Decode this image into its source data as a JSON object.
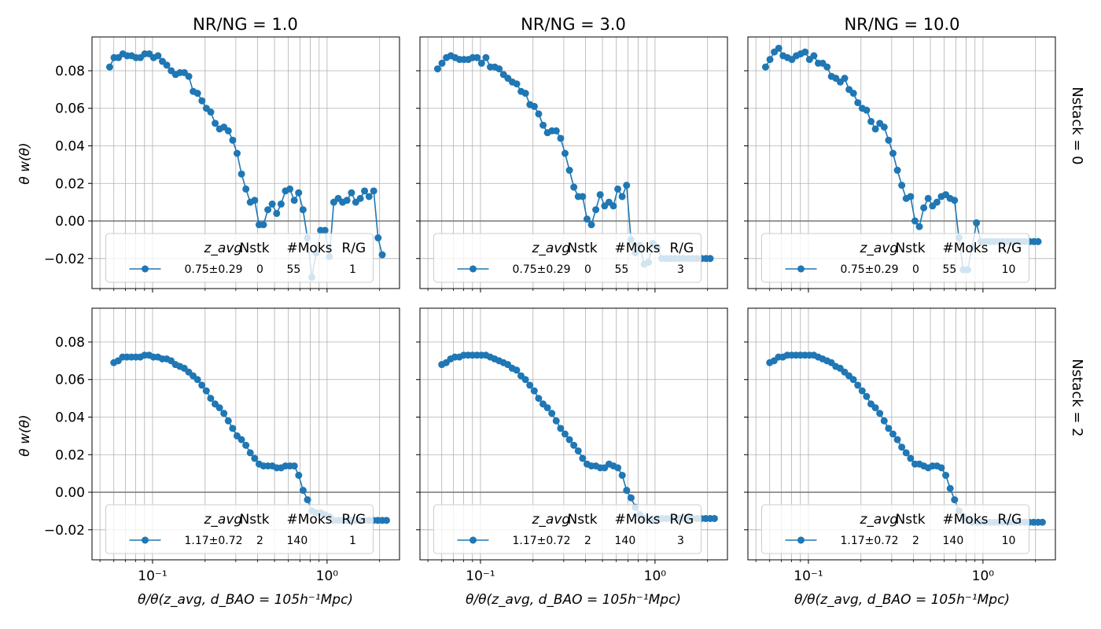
{
  "col_titles": [
    "NR/NG = 1.0",
    "NR/NG = 3.0",
    "NR/NG = 10.0"
  ],
  "row_labels": [
    "Nstack = 0",
    "Nstack = 2"
  ],
  "ylabel": "θ w(θ)",
  "xlabel": "θ/θ(z_avg, d_BAO = 105h⁻¹Mpc)",
  "legend": {
    "header": {
      "zavg": "z_avg",
      "nstk": "Nstk",
      "moks": "#Moks",
      "rg": "R/G"
    },
    "rows": [
      [
        "0.75±0.29",
        "0",
        "55",
        "1"
      ],
      [
        "0.75±0.29",
        "0",
        "55",
        "3"
      ],
      [
        "0.75±0.29",
        "0",
        "55",
        "10"
      ],
      [
        "1.17±0.72",
        "2",
        "140",
        "1"
      ],
      [
        "1.17±0.72",
        "2",
        "140",
        "3"
      ],
      [
        "1.17±0.72",
        "2",
        "140",
        "10"
      ]
    ]
  },
  "chart_data": {
    "type": "line",
    "layout": "2x3 grid",
    "xscale": "log",
    "xlim": [
      0.045,
      2.6
    ],
    "ylim": [
      -0.036,
      0.098
    ],
    "yticks": [
      -0.02,
      0.0,
      0.02,
      0.04,
      0.06,
      0.08
    ],
    "ytick_labels": [
      "−0.02",
      "0.00",
      "0.02",
      "0.04",
      "0.06",
      "0.08"
    ],
    "xticks": [
      0.1,
      1
    ],
    "xtick_labels": [
      "10⁻¹",
      "10⁰"
    ],
    "grid": true,
    "reference_line_y": 0,
    "legend_placement": "lower center",
    "series_color": "#1f77b4",
    "x_top": [
      0.0568,
      0.0602,
      0.0638,
      0.0676,
      0.0716,
      0.0759,
      0.0804,
      0.0852,
      0.0903,
      0.0957,
      0.1014,
      0.1075,
      0.1139,
      0.1207,
      0.1279,
      0.1355,
      0.1436,
      0.1522,
      0.1613,
      0.1709,
      0.1811,
      0.1919,
      0.2034,
      0.2155,
      0.2284,
      0.242,
      0.2564,
      0.2717,
      0.288,
      0.3051,
      0.3234,
      0.3427,
      0.3631,
      0.3848,
      0.4078,
      0.4321,
      0.4579,
      0.4852,
      0.5142,
      0.5449,
      0.5774,
      0.6119,
      0.6484,
      0.6871,
      0.7281,
      0.7715,
      0.8176,
      0.8664,
      0.9181,
      0.9729,
      1.031,
      1.0925,
      1.1577,
      1.2268,
      1.3,
      1.38,
      1.46,
      1.55,
      1.64,
      1.74,
      1.85,
      1.96,
      2.07
    ],
    "x_bottom": [
      0.06,
      0.0636,
      0.0674,
      0.0714,
      0.0757,
      0.0802,
      0.085,
      0.0901,
      0.0955,
      0.1012,
      0.1073,
      0.1137,
      0.1205,
      0.1277,
      0.1353,
      0.1434,
      0.152,
      0.1611,
      0.1707,
      0.1809,
      0.1917,
      0.2032,
      0.2153,
      0.2282,
      0.2418,
      0.2563,
      0.2716,
      0.2878,
      0.305,
      0.3233,
      0.3426,
      0.3631,
      0.3848,
      0.4078,
      0.4322,
      0.458,
      0.4854,
      0.5144,
      0.5452,
      0.5778,
      0.6123,
      0.6489,
      0.6877,
      0.7288,
      0.7724,
      0.8186,
      0.8675,
      0.9194,
      0.9744,
      1.0326,
      1.0943,
      1.1597,
      1.229,
      1.3025,
      1.38,
      1.46,
      1.55,
      1.64,
      1.74,
      1.84,
      1.95,
      2.07,
      2.19
    ],
    "panels": [
      {
        "row": 0,
        "col": 0,
        "name": "0.75±0.29 0 55 1",
        "y": [
          0.082,
          0.087,
          0.087,
          0.089,
          0.088,
          0.088,
          0.087,
          0.087,
          0.089,
          0.089,
          0.087,
          0.088,
          0.085,
          0.083,
          0.08,
          0.078,
          0.079,
          0.079,
          0.077,
          0.069,
          0.068,
          0.064,
          0.06,
          0.058,
          0.052,
          0.049,
          0.05,
          0.048,
          0.043,
          0.036,
          0.025,
          0.017,
          0.01,
          0.011,
          -0.002,
          -0.002,
          0.006,
          0.009,
          0.004,
          0.009,
          0.016,
          0.017,
          0.011,
          0.015,
          0.006,
          -0.009,
          -0.03,
          -0.017,
          -0.005,
          -0.005,
          -0.019,
          0.01,
          0.012,
          0.01,
          0.011,
          0.015,
          0.01,
          0.012,
          0.016,
          0.013,
          0.016,
          -0.009,
          -0.018
        ]
      },
      {
        "row": 0,
        "col": 1,
        "name": "0.75±0.29 0 55 3",
        "y": [
          0.081,
          0.084,
          0.087,
          0.088,
          0.087,
          0.086,
          0.086,
          0.086,
          0.087,
          0.087,
          0.084,
          0.087,
          0.082,
          0.082,
          0.081,
          0.078,
          0.076,
          0.074,
          0.073,
          0.069,
          0.068,
          0.062,
          0.061,
          0.057,
          0.051,
          0.047,
          0.048,
          0.048,
          0.044,
          0.036,
          0.027,
          0.018,
          0.013,
          0.013,
          0.001,
          -0.002,
          0.006,
          0.014,
          0.008,
          0.01,
          0.008,
          0.017,
          0.013,
          0.019,
          -0.01,
          -0.017,
          -0.013,
          -0.023,
          -0.022,
          -0.012,
          -0.014,
          -0.02,
          -0.02,
          -0.02,
          -0.02,
          -0.02,
          -0.02,
          -0.02,
          -0.02,
          -0.02,
          -0.02,
          -0.02,
          -0.02
        ]
      },
      {
        "row": 0,
        "col": 2,
        "name": "0.75±0.29 0 55 10",
        "y": [
          0.082,
          0.086,
          0.09,
          0.092,
          0.088,
          0.087,
          0.086,
          0.088,
          0.089,
          0.09,
          0.086,
          0.088,
          0.084,
          0.084,
          0.082,
          0.077,
          0.076,
          0.074,
          0.076,
          0.07,
          0.068,
          0.063,
          0.06,
          0.059,
          0.053,
          0.049,
          0.052,
          0.05,
          0.043,
          0.036,
          0.027,
          0.019,
          0.012,
          0.013,
          0.0,
          -0.003,
          0.007,
          0.012,
          0.008,
          0.01,
          0.013,
          0.014,
          0.012,
          0.011,
          -0.009,
          -0.026,
          -0.026,
          -0.014,
          -0.001,
          -0.011,
          -0.011,
          -0.011,
          -0.011,
          -0.011,
          -0.011,
          -0.011,
          -0.011,
          -0.011,
          -0.011,
          -0.011,
          -0.011,
          -0.011,
          -0.011
        ]
      },
      {
        "row": 1,
        "col": 0,
        "name": "1.17±0.72 2 140 1",
        "y": [
          0.069,
          0.07,
          0.072,
          0.072,
          0.072,
          0.072,
          0.072,
          0.073,
          0.073,
          0.072,
          0.072,
          0.071,
          0.071,
          0.07,
          0.068,
          0.067,
          0.066,
          0.064,
          0.062,
          0.06,
          0.057,
          0.054,
          0.05,
          0.047,
          0.045,
          0.042,
          0.038,
          0.034,
          0.03,
          0.028,
          0.025,
          0.021,
          0.018,
          0.015,
          0.014,
          0.014,
          0.014,
          0.013,
          0.013,
          0.014,
          0.014,
          0.014,
          0.009,
          0.001,
          -0.004,
          -0.01,
          -0.011,
          -0.011,
          -0.012,
          -0.013,
          -0.015,
          -0.015,
          -0.015,
          -0.015,
          -0.015,
          -0.015,
          -0.015,
          -0.015,
          -0.015,
          -0.015,
          -0.015,
          -0.015,
          -0.015
        ]
      },
      {
        "row": 1,
        "col": 1,
        "name": "1.17±0.72 2 140 3",
        "y": [
          0.068,
          0.069,
          0.071,
          0.072,
          0.072,
          0.073,
          0.073,
          0.073,
          0.073,
          0.073,
          0.073,
          0.072,
          0.071,
          0.07,
          0.069,
          0.068,
          0.066,
          0.065,
          0.062,
          0.06,
          0.057,
          0.054,
          0.05,
          0.047,
          0.045,
          0.042,
          0.038,
          0.034,
          0.031,
          0.028,
          0.025,
          0.022,
          0.018,
          0.015,
          0.014,
          0.014,
          0.013,
          0.013,
          0.015,
          0.014,
          0.013,
          0.009,
          0.001,
          -0.003,
          -0.008,
          -0.012,
          -0.014,
          -0.015,
          -0.015,
          -0.014,
          -0.014,
          -0.014,
          -0.014,
          -0.014,
          -0.014,
          -0.014,
          -0.014,
          -0.014,
          -0.014,
          -0.014,
          -0.014,
          -0.014,
          -0.014
        ]
      },
      {
        "row": 1,
        "col": 2,
        "name": "1.17±0.72 2 140 10",
        "y": [
          0.069,
          0.07,
          0.072,
          0.072,
          0.073,
          0.073,
          0.073,
          0.073,
          0.073,
          0.073,
          0.073,
          0.072,
          0.071,
          0.07,
          0.069,
          0.067,
          0.066,
          0.064,
          0.062,
          0.06,
          0.057,
          0.054,
          0.051,
          0.047,
          0.045,
          0.042,
          0.038,
          0.034,
          0.031,
          0.028,
          0.024,
          0.021,
          0.018,
          0.015,
          0.015,
          0.014,
          0.013,
          0.014,
          0.014,
          0.013,
          0.009,
          0.002,
          -0.004,
          -0.01,
          -0.013,
          -0.015,
          -0.016,
          -0.016,
          -0.016,
          -0.016,
          -0.016,
          -0.016,
          -0.016,
          -0.016,
          -0.016,
          -0.016,
          -0.016,
          -0.016,
          -0.016,
          -0.016,
          -0.016,
          -0.016,
          -0.016
        ]
      }
    ]
  }
}
